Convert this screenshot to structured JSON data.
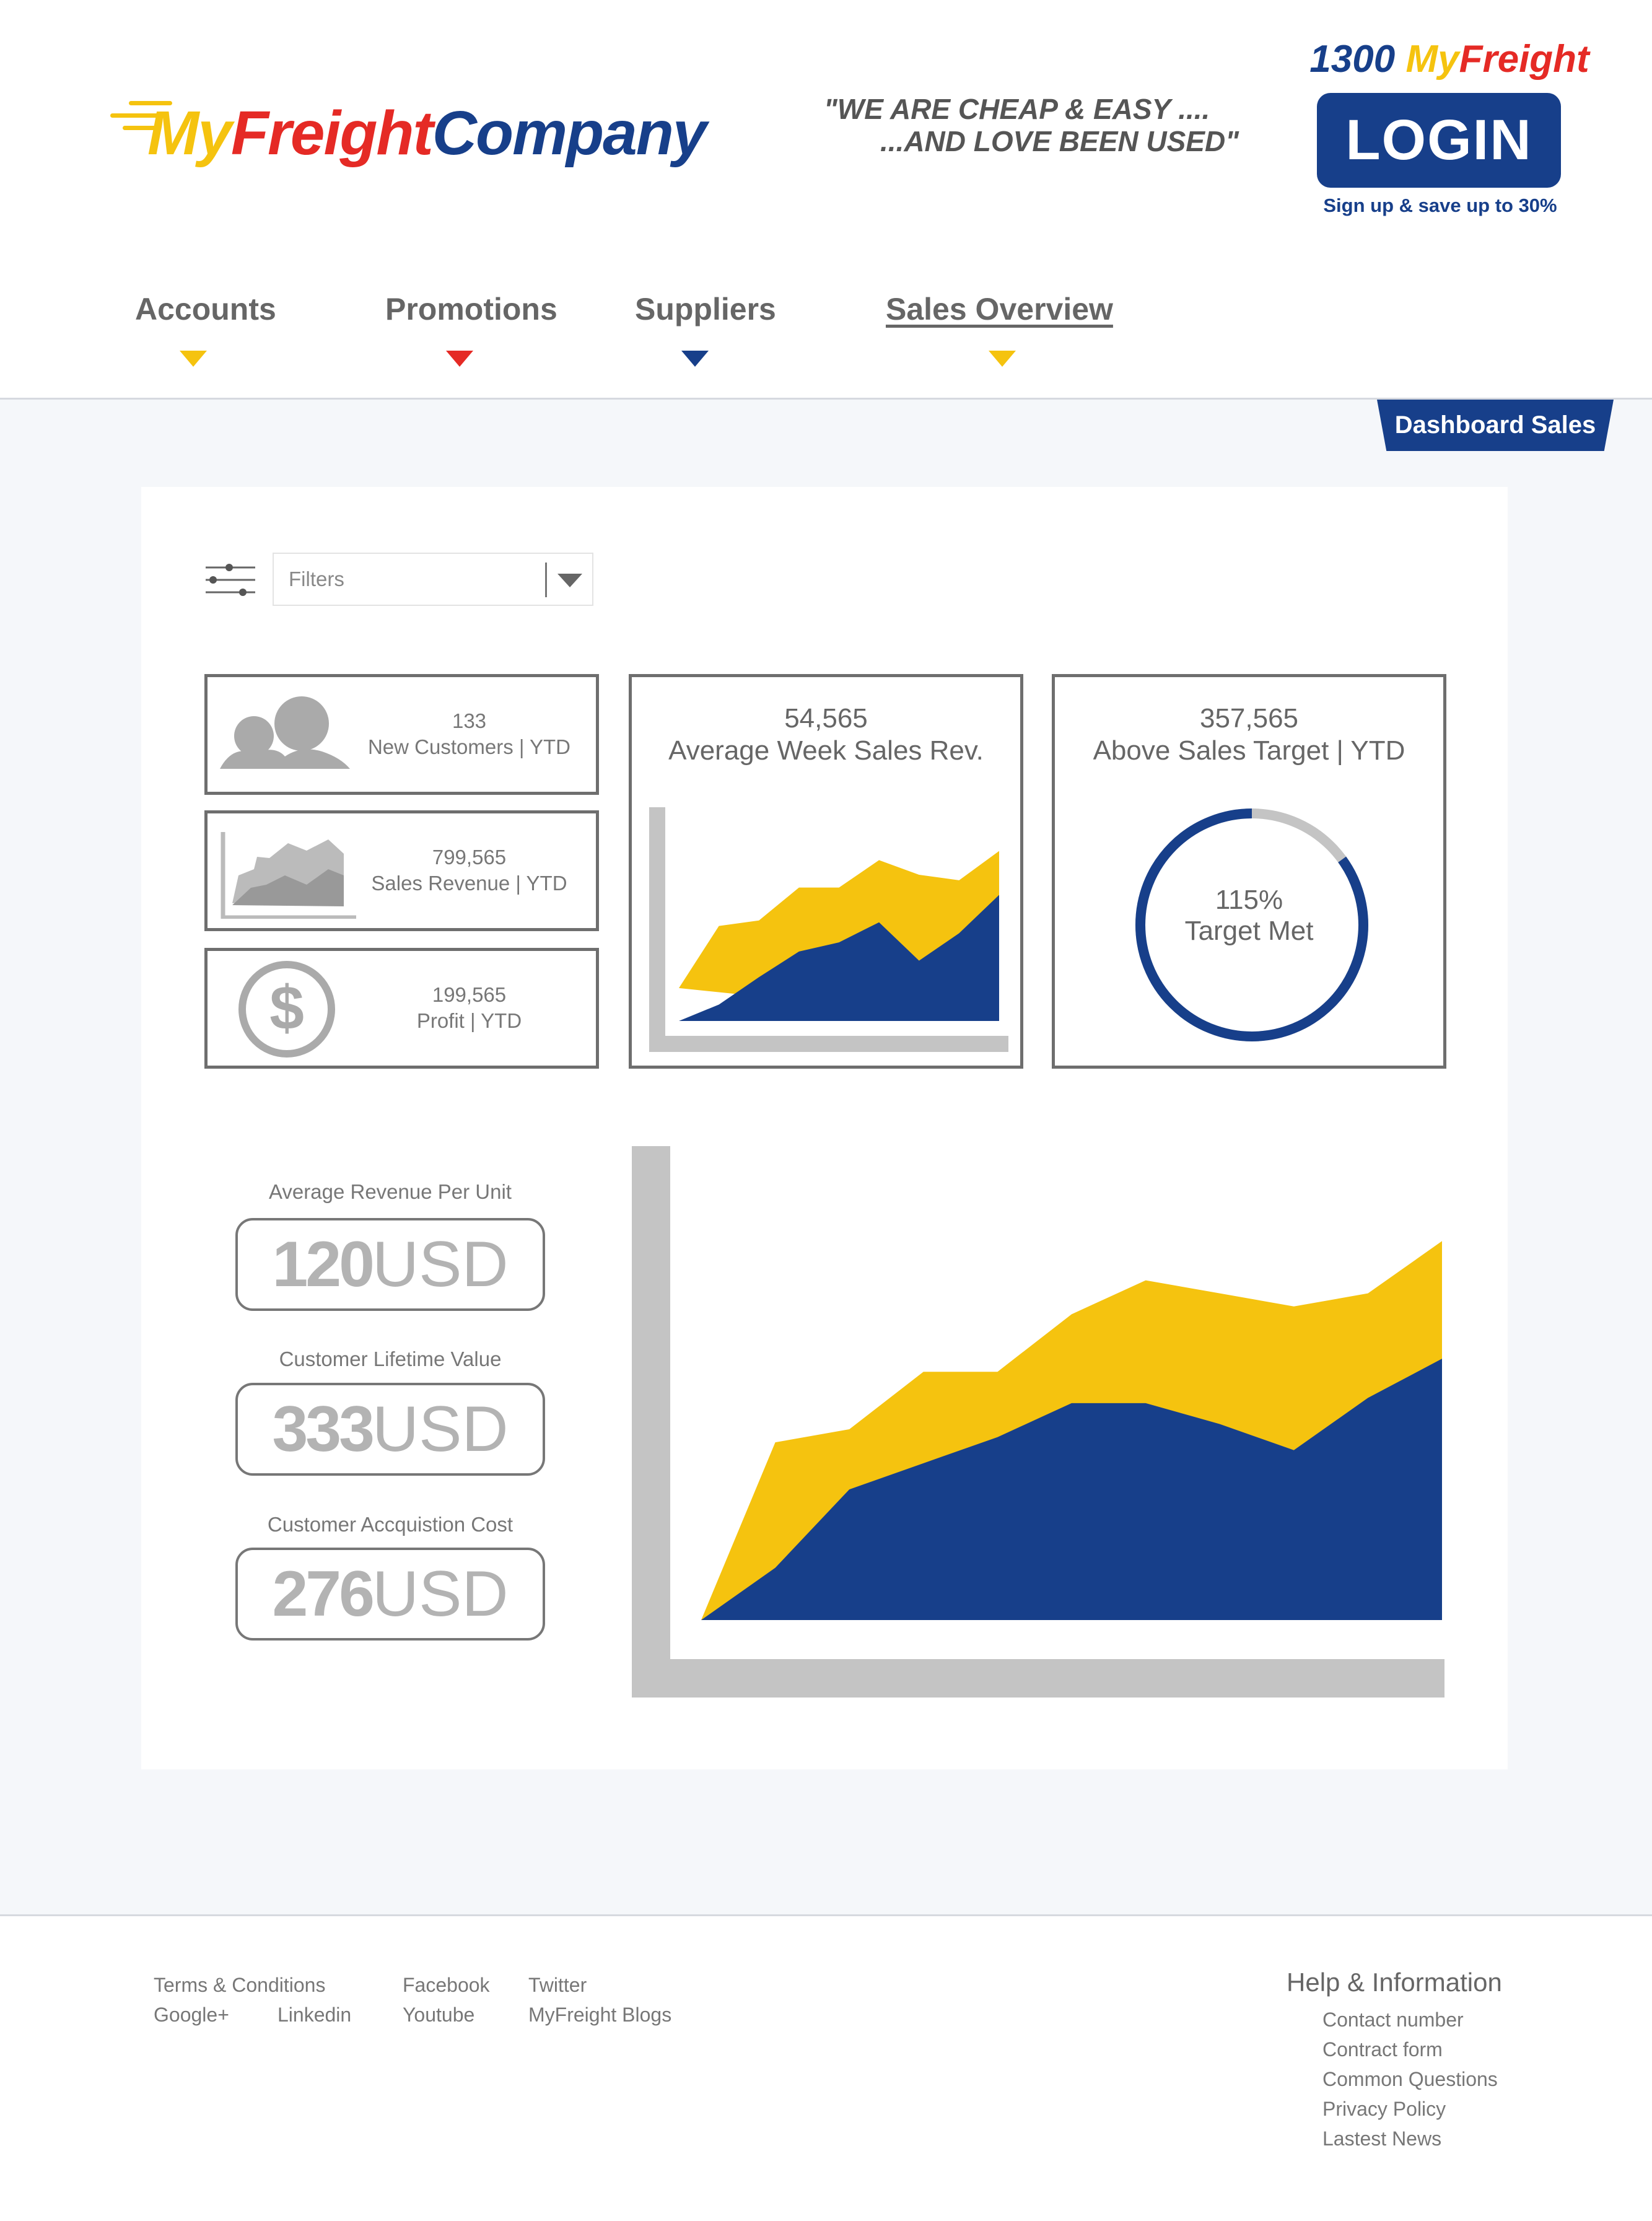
{
  "brand": {
    "logo_my": "My",
    "logo_freight": "Freight",
    "logo_company": "Company",
    "tagline_line1": "\"WE ARE CHEAP & EASY ....",
    "tagline_line2": "...AND LOVE BEEN USED\"",
    "phone_number": "1300 ",
    "phone_my": "My",
    "phone_freight": "Freight",
    "colors": {
      "blue": "#173f8a",
      "yellow": "#f5c30f",
      "red": "#e52a25"
    }
  },
  "header": {
    "login_label": "LOGIN",
    "signup_text": "Sign up & save up to 30%"
  },
  "nav": {
    "items": [
      {
        "label": "Accounts",
        "arrow_color": "#f5c30f"
      },
      {
        "label": "Promotions",
        "arrow_color": "#e52a25"
      },
      {
        "label": "Suppliers",
        "arrow_color": "#173f8a"
      },
      {
        "label": "Sales Overview",
        "arrow_color": "#f5c30f",
        "active": true
      }
    ]
  },
  "dashboard": {
    "tab_label": "Dashboard Sales",
    "filters_placeholder": "Filters",
    "kpis": {
      "new_customers": {
        "value": "133",
        "label": "New Customers | YTD",
        "icon": "users-icon"
      },
      "sales_revenue": {
        "value": "799,565",
        "label": "Sales Revenue | YTD",
        "icon": "area-chart-icon"
      },
      "profit": {
        "value": "199,565",
        "label": "Profit | YTD",
        "icon": "dollar-icon"
      },
      "avg_week": {
        "value": "54,565",
        "label": "Average Week Sales Rev."
      },
      "above_target": {
        "value": "357,565",
        "label": "Above Sales Target | YTD",
        "percent": "115%",
        "percent_label": "Target Met",
        "progress": 0.85
      }
    },
    "metrics": [
      {
        "label": "Average Revenue Per Unit",
        "number": "120",
        "unit": "USD"
      },
      {
        "label": "Customer Lifetime Value",
        "number": "333",
        "unit": "USD"
      },
      {
        "label": "Customer Accquistion Cost",
        "number": "276",
        "unit": "USD"
      }
    ]
  },
  "chart_data": [
    {
      "type": "area",
      "x": [
        0,
        1,
        2,
        3,
        4,
        5,
        6,
        7,
        8
      ],
      "series": [
        {
          "color": "#f5c30f",
          "values": [
            18,
            52,
            55,
            73,
            73,
            88,
            80,
            77,
            93
          ]
        },
        {
          "color": "#173f8a",
          "values": [
            0,
            9,
            24,
            38,
            43,
            54,
            33,
            48,
            69
          ]
        }
      ],
      "ylim": [
        0,
        100
      ]
    },
    {
      "type": "area",
      "x": [
        0,
        1,
        2,
        3,
        4,
        5,
        6,
        7,
        8,
        9,
        10
      ],
      "series": [
        {
          "color": "#f5c30f",
          "values": [
            0,
            68,
            73,
            95,
            95,
            117,
            130,
            125,
            120,
            125,
            145
          ]
        },
        {
          "color": "#173f8a",
          "values": [
            0,
            20,
            50,
            60,
            70,
            83,
            83,
            75,
            65,
            85,
            100
          ]
        }
      ],
      "ylim": [
        0,
        160
      ]
    }
  ],
  "footer": {
    "links_col1": [
      "Terms & Conditions",
      "Google+"
    ],
    "links_col1b": [
      "",
      "Linkedin"
    ],
    "links_col2": [
      "Facebook",
      "Youtube"
    ],
    "links_col3": [
      "Twitter",
      "MyFreight Blogs"
    ],
    "help_title": "Help & Information",
    "help_links": [
      "Contact number",
      "Contract form",
      "Common Questions",
      "Privacy Policy",
      "Lastest News"
    ]
  }
}
